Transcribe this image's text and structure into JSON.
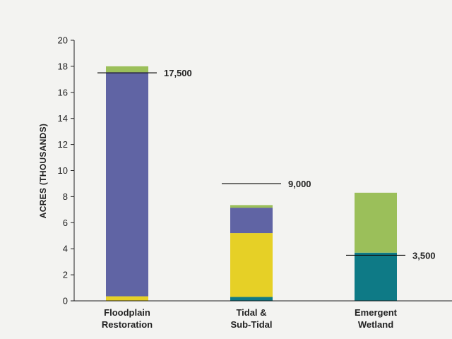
{
  "chart_data": {
    "type": "bar",
    "stacked": true,
    "title": "",
    "xlabel": "",
    "ylabel": "ACRES (THOUSANDS)",
    "ylim": [
      0,
      20
    ],
    "yticks": [
      "0",
      "2",
      "4",
      "6",
      "8",
      "10",
      "12",
      "14",
      "16",
      "18",
      "20"
    ],
    "categories": [
      [
        "Floodplain",
        "Restoration"
      ],
      [
        "Tidal &",
        "Sub-Tidal"
      ],
      [
        "Emergent",
        "Wetland"
      ]
    ],
    "series": [
      {
        "color": "#0e7a86",
        "values": [
          0,
          0.3,
          3.7
        ]
      },
      {
        "color": "#e6d026",
        "values": [
          0.35,
          4.9,
          0
        ]
      },
      {
        "color": "#6064a4",
        "values": [
          17.2,
          1.95,
          0
        ]
      },
      {
        "color": "#9bbf5a",
        "values": [
          0.45,
          0.2,
          4.6
        ]
      }
    ],
    "targets": [
      {
        "value": 17.5,
        "label": "17,500"
      },
      {
        "value": 9.0,
        "label": "9,000"
      },
      {
        "value": 3.5,
        "label": "3,500"
      }
    ],
    "grid": false,
    "legend": "none"
  }
}
